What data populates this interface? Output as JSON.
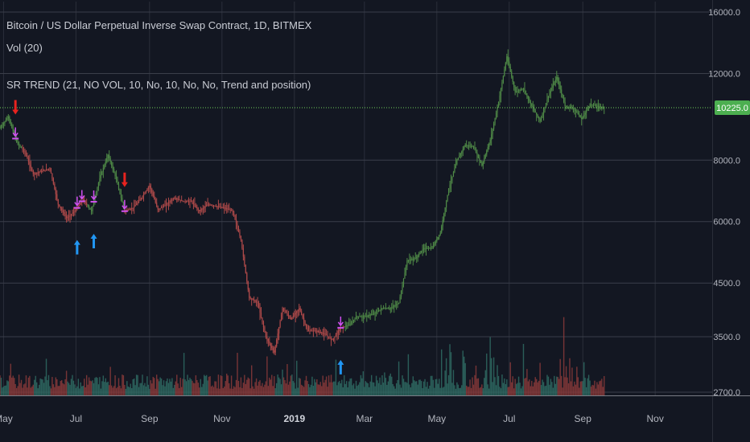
{
  "legend": {
    "title": "Bitcoin / US Dollar Perpetual Inverse Swap Contract, 1D, BITMEX",
    "vol": "Vol (20)",
    "indicator": "SR TREND (21, NO VOL, 10, No, 10, No, No, Trend and position)"
  },
  "colors": {
    "background": "#131722",
    "grid": "#3a3e4a",
    "up": "#4f8a47",
    "down": "#b04a4a",
    "volume_up": "#2f6b63",
    "volume_down": "#8a3a3a",
    "price_line": "#6fce5a",
    "buy_arrow": "#2196f3",
    "sell_arrow": "#e8231f",
    "marker": "#d050f0",
    "axis_text": "#b2b5be"
  },
  "chart_data": {
    "type": "line",
    "price_scale": "log",
    "ylim": [
      2700,
      16000
    ],
    "y_ticks": [
      "16000.0",
      "12000.0",
      "8000.0",
      "6000.0",
      "4500.0",
      "3500.0",
      "2700.0"
    ],
    "y_tick_values": [
      16000,
      12000,
      8000,
      6000,
      4500,
      3500,
      2700
    ],
    "x_ticks": [
      "May",
      "Jul",
      "Sep",
      "Nov",
      "2019",
      "Mar",
      "May",
      "Jul",
      "Sep",
      "Nov"
    ],
    "x_tick_dates": [
      "2018-05-01",
      "2018-07-01",
      "2018-09-01",
      "2018-11-01",
      "2019-01-01",
      "2019-03-01",
      "2019-05-01",
      "2019-07-01",
      "2019-09-01",
      "2019-11-01"
    ],
    "xlim": [
      "2018-04-28",
      "2019-12-19"
    ],
    "current_price": 10225.0,
    "current_price_label": "10225.0",
    "grid": true,
    "series": [
      {
        "name": "Bitcoin / US Dollar Perpetual Inverse Swap Contract",
        "points": [
          [
            "2018-04-28",
            9300
          ],
          [
            "2018-05-05",
            9800
          ],
          [
            "2018-05-12",
            8700
          ],
          [
            "2018-05-19",
            8300
          ],
          [
            "2018-05-26",
            7500
          ],
          [
            "2018-06-02",
            7600
          ],
          [
            "2018-06-09",
            7700
          ],
          [
            "2018-06-16",
            6500
          ],
          [
            "2018-06-23",
            6100
          ],
          [
            "2018-06-30",
            6300
          ],
          [
            "2018-07-07",
            6650
          ],
          [
            "2018-07-14",
            6300
          ],
          [
            "2018-07-21",
            7350
          ],
          [
            "2018-07-28",
            8200
          ],
          [
            "2018-08-04",
            7300
          ],
          [
            "2018-08-11",
            6300
          ],
          [
            "2018-08-18",
            6400
          ],
          [
            "2018-08-25",
            6700
          ],
          [
            "2018-09-01",
            7100
          ],
          [
            "2018-09-08",
            6350
          ],
          [
            "2018-09-15",
            6500
          ],
          [
            "2018-09-22",
            6700
          ],
          [
            "2018-09-29",
            6600
          ],
          [
            "2018-10-06",
            6600
          ],
          [
            "2018-10-13",
            6300
          ],
          [
            "2018-10-20",
            6500
          ],
          [
            "2018-10-27",
            6450
          ],
          [
            "2018-11-03",
            6400
          ],
          [
            "2018-11-10",
            6300
          ],
          [
            "2018-11-17",
            5500
          ],
          [
            "2018-11-24",
            4200
          ],
          [
            "2018-12-01",
            4100
          ],
          [
            "2018-12-08",
            3500
          ],
          [
            "2018-12-15",
            3250
          ],
          [
            "2018-12-22",
            4000
          ],
          [
            "2018-12-29",
            3800
          ],
          [
            "2019-01-05",
            4000
          ],
          [
            "2019-01-12",
            3600
          ],
          [
            "2019-01-19",
            3600
          ],
          [
            "2019-01-26",
            3550
          ],
          [
            "2019-02-02",
            3450
          ],
          [
            "2019-02-09",
            3650
          ],
          [
            "2019-02-16",
            3700
          ],
          [
            "2019-02-23",
            3850
          ],
          [
            "2019-03-02",
            3850
          ],
          [
            "2019-03-09",
            3900
          ],
          [
            "2019-03-16",
            4000
          ],
          [
            "2019-03-23",
            4000
          ],
          [
            "2019-03-30",
            4100
          ],
          [
            "2019-04-06",
            5000
          ],
          [
            "2019-04-13",
            5050
          ],
          [
            "2019-04-20",
            5300
          ],
          [
            "2019-04-27",
            5300
          ],
          [
            "2019-05-04",
            5700
          ],
          [
            "2019-05-11",
            7000
          ],
          [
            "2019-05-18",
            8000
          ],
          [
            "2019-05-25",
            8600
          ],
          [
            "2019-06-01",
            8500
          ],
          [
            "2019-06-08",
            7800
          ],
          [
            "2019-06-15",
            8800
          ],
          [
            "2019-06-22",
            10500
          ],
          [
            "2019-06-29",
            13000
          ],
          [
            "2019-07-06",
            11000
          ],
          [
            "2019-07-13",
            11200
          ],
          [
            "2019-07-20",
            10300
          ],
          [
            "2019-07-27",
            9600
          ],
          [
            "2019-08-03",
            10800
          ],
          [
            "2019-08-10",
            11800
          ],
          [
            "2019-08-17",
            10300
          ],
          [
            "2019-08-24",
            10200
          ],
          [
            "2019-08-31",
            9700
          ],
          [
            "2019-09-07",
            10400
          ],
          [
            "2019-09-14",
            10300
          ],
          [
            "2019-09-19",
            10225
          ]
        ]
      }
    ],
    "trend_segments": [
      {
        "start": "2018-04-28",
        "end": "2018-05-16",
        "trend": "up"
      },
      {
        "start": "2018-05-16",
        "end": "2018-07-10",
        "trend": "down"
      },
      {
        "start": "2018-07-10",
        "end": "2018-08-10",
        "trend": "up"
      },
      {
        "start": "2018-08-10",
        "end": "2019-02-12",
        "trend": "down"
      },
      {
        "start": "2019-02-12",
        "end": "2019-09-19",
        "trend": "up"
      }
    ],
    "signals": {
      "buy": [
        "2018-07-02",
        "2018-07-16",
        "2019-02-09"
      ],
      "sell": [
        "2018-05-11",
        "2018-08-11"
      ],
      "markers": [
        "2018-05-11",
        "2018-07-02",
        "2018-07-06",
        "2018-07-16",
        "2018-08-11",
        "2019-02-09"
      ]
    }
  }
}
